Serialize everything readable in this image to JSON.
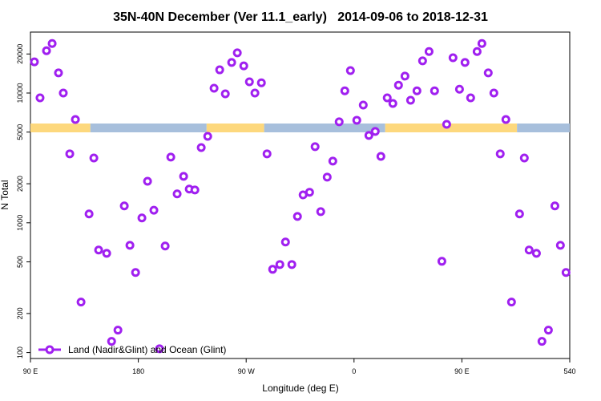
{
  "chart_data": {
    "type": "scatter",
    "title": "35N-40N December (Ver 11.1_early)   2014-09-06 to 2018-12-31",
    "x_label": "Longitude (deg E)",
    "y_label": "N Total",
    "log_y": true,
    "legend_position": "bottomleft",
    "xlim": [
      90,
      540
    ],
    "xticks": [
      {
        "value": 90,
        "label": "90 E"
      },
      180,
      {
        "value": 270,
        "label": "90 W"
      },
      {
        "value": 360,
        "label": "0"
      },
      {
        "value": 450,
        "label": "90 E"
      },
      540
    ],
    "ylim": [
      90,
      29500
    ],
    "yticks": [
      100,
      200,
      500,
      1000,
      2000,
      5000,
      10000,
      20000
    ],
    "strip": [
      {
        "from": 90,
        "to": 140,
        "color": "#fdd87d"
      },
      {
        "from": 140,
        "to": 237,
        "color": "#a7bfdc"
      },
      {
        "from": 237,
        "to": 285,
        "color": "#fdd87d"
      },
      {
        "from": 285,
        "to": 386,
        "color": "#a7bfdc"
      },
      {
        "from": 386,
        "to": 496,
        "color": "#fdd87d"
      },
      {
        "from": 496,
        "to": 540,
        "color": "#a7bfdc"
      }
    ],
    "x": [
      93.3,
      98.0,
      103.4,
      108.1,
      113.4,
      117.4,
      122.8,
      127.5,
      132.2,
      138.9,
      142.9,
      146.9,
      153.6,
      157.7,
      163.0,
      168.3,
      173.0,
      177.7,
      183.0,
      187.7,
      193.0,
      197.7,
      202.4,
      207.1,
      212.4,
      217.8,
      222.5,
      227.2,
      232.5,
      237.9,
      243.2,
      247.9,
      252.6,
      257.9,
      262.6,
      268.0,
      272.7,
      277.3,
      282.7,
      287.4,
      292.1,
      298.1,
      302.8,
      308.1,
      312.8,
      317.5,
      322.9,
      327.5,
      332.2,
      337.6,
      342.3,
      347.6,
      352.3,
      357.0,
      362.3,
      367.7,
      372.4,
      377.7,
      382.4,
      387.7,
      392.4,
      397.1,
      402.5,
      407.2,
      412.5,
      417.2,
      422.6,
      427.2,
      433.3,
      437.3,
      442.6,
      448.0,
      452.6,
      457.3,
      462.7,
      466.7,
      472.0,
      476.7,
      482.0,
      486.7,
      491.4,
      498.1,
      502.1,
      506.1,
      512.2,
      516.8,
      522.2,
      527.6,
      532.2,
      536.9
    ],
    "series": [
      {
        "name": "Land (Nadir&Glint) and Ocean (Glint)",
        "color": "#a020f0",
        "values": [
          17400,
          9180,
          21200,
          24100,
          14300,
          10000,
          3400,
          6250,
          245,
          1170,
          3160,
          617,
          582,
          122,
          149,
          1350,
          671,
          414,
          1090,
          2090,
          1250,
          107,
          662,
          3210,
          1670,
          2280,
          1820,
          1790,
          3800,
          4640,
          10900,
          15100,
          9860,
          17200,
          20400,
          16200,
          12200,
          10000,
          12000,
          3400,
          438,
          477,
          711,
          477,
          1120,
          1640,
          1720,
          3860,
          1220,
          2250,
          2990,
          6000,
          10400,
          14900,
          6170,
          8080,
          4710,
          5060,
          3250,
          9180,
          8310,
          11500,
          13500,
          8800,
          10400,
          17700,
          20900,
          10400,
          505,
          5740,
          18700,
          10700,
          17200,
          9180,
          20900,
          24100,
          14300,
          10000,
          3400,
          6250,
          245,
          1170,
          3160,
          617,
          582,
          122,
          149,
          1350,
          671,
          414
        ]
      }
    ]
  }
}
